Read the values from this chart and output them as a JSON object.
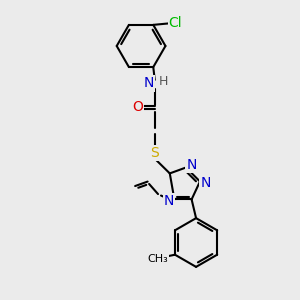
{
  "background_color": "#ebebeb",
  "atom_colors": {
    "C": "#000000",
    "N": "#0000cc",
    "O": "#dd0000",
    "S": "#ccaa00",
    "Cl": "#00bb00",
    "H": "#555555"
  },
  "bond_color": "#000000",
  "bond_width": 1.5,
  "font_size_atoms": 10,
  "font_size_small": 9
}
